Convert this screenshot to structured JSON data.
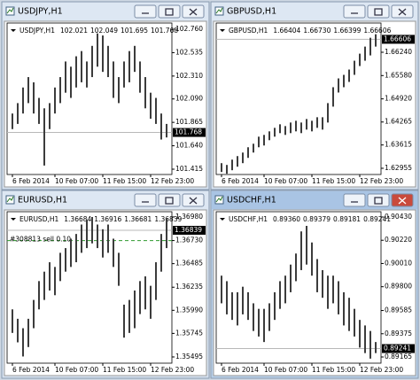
{
  "chart_data": [
    {
      "type": "range_bar",
      "title": "USDJPY,H1",
      "ohlc": [
        {
          "value": 102.021,
          "label": "102.021"
        },
        {
          "value": 102.049,
          "label": "102.049"
        },
        {
          "value": 101.695,
          "label": "101.695"
        },
        {
          "value": 101.768,
          "label": "101.768"
        }
      ],
      "high": [
        101.95,
        102.05,
        102.2,
        102.3,
        102.25,
        102.1,
        102.0,
        102.05,
        102.2,
        102.3,
        102.45,
        102.4,
        102.5,
        102.55,
        102.45,
        102.6,
        102.72,
        102.7,
        102.6,
        102.45,
        102.3,
        102.45,
        102.55,
        102.6,
        102.45,
        102.3,
        102.15,
        102.1,
        101.95,
        101.85
      ],
      "low": [
        101.8,
        101.85,
        101.95,
        102.05,
        101.95,
        101.85,
        101.45,
        101.8,
        101.95,
        102.05,
        102.15,
        102.1,
        102.2,
        102.25,
        102.2,
        102.3,
        102.4,
        102.35,
        102.3,
        102.1,
        102.05,
        102.2,
        102.25,
        102.35,
        102.15,
        102.0,
        101.9,
        101.85,
        101.7,
        101.72
      ],
      "xlim": [
        -1,
        30
      ],
      "xticks": [
        {
          "value": 0,
          "label": "6 Feb 2014"
        },
        {
          "value": 8,
          "label": "10 Feb 07:00"
        },
        {
          "value": 17,
          "label": "11 Feb 15:00"
        },
        {
          "value": 26,
          "label": "12 Feb 23:00"
        }
      ],
      "ylim": [
        101.364,
        102.794
      ],
      "yticks": [
        {
          "value": 102.76,
          "label": "102.760"
        },
        102.535,
        {
          "value": 102.31,
          "label": "102.310"
        },
        {
          "value": 102.09,
          "label": "102.090"
        },
        101.865,
        {
          "value": 101.64,
          "label": "101.640"
        },
        101.415
      ],
      "last_price": {
        "value": 101.768,
        "label": "101.768"
      },
      "color": "#3c3c3c",
      "active": false
    },
    {
      "type": "range_bar",
      "title": "GBPUSD,H1",
      "ohlc": [
        {
          "value": 1.66404,
          "label": "1.66404"
        },
        {
          "value": 1.6673,
          "label": "1.66730"
        },
        {
          "value": 1.66399,
          "label": "1.66399"
        },
        {
          "value": 1.66606,
          "label": "1.66606"
        }
      ],
      "high": [
        1.631,
        1.6305,
        1.632,
        1.633,
        1.634,
        1.6355,
        1.6365,
        1.6385,
        1.639,
        1.64,
        1.641,
        1.642,
        1.6415,
        1.6425,
        1.643,
        1.6425,
        1.6435,
        1.643,
        1.644,
        1.644,
        1.648,
        1.6525,
        1.655,
        1.656,
        1.6575,
        1.66,
        1.662,
        1.664,
        1.6665,
        1.6675
      ],
      "low": [
        1.6285,
        1.628,
        1.629,
        1.63,
        1.631,
        1.6325,
        1.634,
        1.6355,
        1.636,
        1.6375,
        1.6385,
        1.6395,
        1.639,
        1.6395,
        1.64,
        1.6395,
        1.6405,
        1.64,
        1.641,
        1.6405,
        1.6425,
        1.647,
        1.651,
        1.6525,
        1.654,
        1.656,
        1.6585,
        1.66,
        1.6615,
        1.664
      ],
      "xlim": [
        -1,
        30
      ],
      "xticks": [
        {
          "value": 0,
          "label": "6 Feb 2014"
        },
        {
          "value": 8,
          "label": "10 Feb 07:00"
        },
        {
          "value": 17,
          "label": "11 Feb 15:00"
        },
        {
          "value": 26,
          "label": "12 Feb 23:00"
        }
      ],
      "ylim": [
        1.62779,
        1.66992
      ],
      "yticks": [
        {
          "value": 1.6624,
          "label": "1.66240"
        },
        {
          "value": 1.6558,
          "label": "1.65580"
        },
        {
          "value": 1.6492,
          "label": "1.64920"
        },
        1.64265,
        1.63615,
        1.62955
      ],
      "last_price": {
        "value": 1.66606,
        "label": "1.66606"
      },
      "color": "#3c3c3c",
      "active": false
    },
    {
      "type": "range_bar",
      "title": "EURUSD,H1",
      "ohlc": [
        {
          "value": 1.36684,
          "label": "1.36684"
        },
        {
          "value": 1.36916,
          "label": "1.36916"
        },
        {
          "value": 1.36681,
          "label": "1.36681"
        },
        {
          "value": 1.36839,
          "label": "1.36839"
        }
      ],
      "high": [
        1.36,
        1.359,
        1.358,
        1.359,
        1.361,
        1.363,
        1.364,
        1.365,
        1.3645,
        1.366,
        1.3665,
        1.3675,
        1.368,
        1.369,
        1.3695,
        1.3698,
        1.369,
        1.3685,
        1.369,
        1.3675,
        1.366,
        1.3605,
        1.361,
        1.362,
        1.363,
        1.3635,
        1.3625,
        1.365,
        1.368,
        1.3697
      ],
      "low": [
        1.3575,
        1.3565,
        1.355,
        1.356,
        1.358,
        1.36,
        1.361,
        1.362,
        1.3615,
        1.363,
        1.364,
        1.3645,
        1.365,
        1.366,
        1.3665,
        1.367,
        1.3665,
        1.3655,
        1.366,
        1.3645,
        1.3625,
        1.357,
        1.3575,
        1.358,
        1.3595,
        1.36,
        1.359,
        1.361,
        1.364,
        1.3665
      ],
      "xlim": [
        -1,
        30
      ],
      "xticks": [
        {
          "value": 0,
          "label": "6 Feb 2014"
        },
        {
          "value": 8,
          "label": "10 Feb 07:00"
        },
        {
          "value": 17,
          "label": "11 Feb 15:00"
        },
        {
          "value": 26,
          "label": "12 Feb 23:00"
        }
      ],
      "ylim": [
        1.35429,
        1.37008
      ],
      "yticks": [
        {
          "value": 1.3698,
          "label": "1.36980"
        },
        {
          "value": 1.3673,
          "label": "1.36730"
        },
        1.36485,
        1.36235,
        {
          "value": 1.3599,
          "label": "1.35990"
        },
        1.35745,
        1.35495
      ],
      "last_price": {
        "value": 1.36839,
        "label": "1.36839"
      },
      "annotations": [
        {
          "label": "#308813 sell 0.10",
          "value": 1.3673
        }
      ],
      "color": "#3c3c3c",
      "active": false
    },
    {
      "type": "range_bar",
      "title": "USDCHF,H1",
      "ohlc": [
        {
          "value": 0.8936,
          "label": "0.89360"
        },
        {
          "value": 0.89379,
          "label": "0.89379"
        },
        {
          "value": 0.89181,
          "label": "0.89181"
        },
        {
          "value": 0.89241,
          "label": "0.89241"
        }
      ],
      "high": [
        0.899,
        0.8985,
        0.8975,
        0.8975,
        0.898,
        0.8975,
        0.8965,
        0.896,
        0.896,
        0.8965,
        0.8975,
        0.8985,
        0.899,
        0.9,
        0.901,
        0.903,
        0.9035,
        0.902,
        0.9005,
        0.8995,
        0.899,
        0.899,
        0.8985,
        0.8975,
        0.897,
        0.896,
        0.895,
        0.8945,
        0.894,
        0.893
      ],
      "low": [
        0.8965,
        0.8955,
        0.895,
        0.8945,
        0.8955,
        0.895,
        0.894,
        0.8935,
        0.893,
        0.894,
        0.895,
        0.896,
        0.8965,
        0.8975,
        0.8985,
        0.8995,
        0.9,
        0.899,
        0.8975,
        0.897,
        0.896,
        0.8965,
        0.8955,
        0.8945,
        0.894,
        0.8935,
        0.8925,
        0.892,
        0.8915,
        0.892
      ],
      "xlim": [
        -1,
        30
      ],
      "xticks": [
        {
          "value": 0,
          "label": "6 Feb 2014"
        },
        {
          "value": 8,
          "label": "10 Feb 07:00"
        },
        {
          "value": 17,
          "label": "11 Feb 15:00"
        },
        {
          "value": 26,
          "label": "12 Feb 23:00"
        }
      ],
      "ylim": [
        0.89109,
        0.90454
      ],
      "yticks": [
        {
          "value": 0.9043,
          "label": "0.90430"
        },
        {
          "value": 0.9022,
          "label": "0.90220"
        },
        {
          "value": 0.9001,
          "label": "0.90010"
        },
        {
          "value": 0.898,
          "label": "0.89800"
        },
        0.89585,
        0.89375,
        0.89165
      ],
      "last_price": {
        "value": 0.89241,
        "label": "0.89241"
      },
      "color": "#3c3c3c",
      "active": true
    }
  ]
}
